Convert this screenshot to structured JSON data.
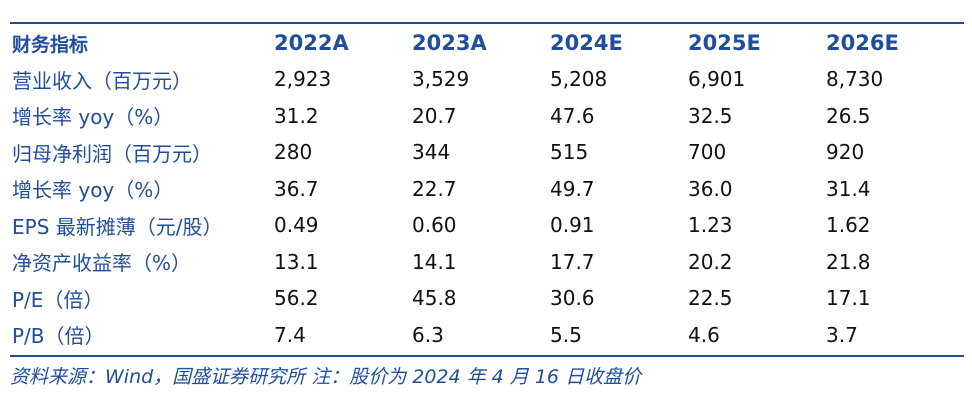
{
  "header": [
    "财务指标",
    "2022A",
    "2023A",
    "2024E",
    "2025E",
    "2026E"
  ],
  "rows": [
    {
      "label": "营业收入（百万元）",
      "values": [
        "2,923",
        "3,529",
        "5,208",
        "6,901",
        "8,730"
      ]
    },
    {
      "label": "增长率 yoy（%）",
      "values": [
        "31.2",
        "20.7",
        "47.6",
        "32.5",
        "26.5"
      ]
    },
    {
      "label": "归母净利润（百万元）",
      "values": [
        "280",
        "344",
        "515",
        "700",
        "920"
      ]
    },
    {
      "label": "增长率 yoy（%）",
      "values": [
        "36.7",
        "22.7",
        "49.7",
        "36.0",
        "31.4"
      ]
    },
    {
      "label": "EPS 最新摊薄（元/股）",
      "values": [
        "0.49",
        "0.60",
        "0.91",
        "1.23",
        "1.62"
      ]
    },
    {
      "label": "净资产收益率（%）",
      "values": [
        "13.1",
        "14.1",
        "17.7",
        "20.2",
        "21.8"
      ]
    },
    {
      "label": "P/E（倍）",
      "values": [
        "56.2",
        "45.8",
        "30.6",
        "22.5",
        "17.1"
      ]
    },
    {
      "label": "P/B（倍）",
      "values": [
        "7.4",
        "6.3",
        "5.5",
        "4.6",
        "3.7"
      ]
    }
  ],
  "footnote": "资料来源：Wind，国盛证券研究所   注：股价为 2024 年 4 月 16 日收盘价",
  "colors": {
    "accent": "#1f4e9c",
    "text": "#111111"
  }
}
